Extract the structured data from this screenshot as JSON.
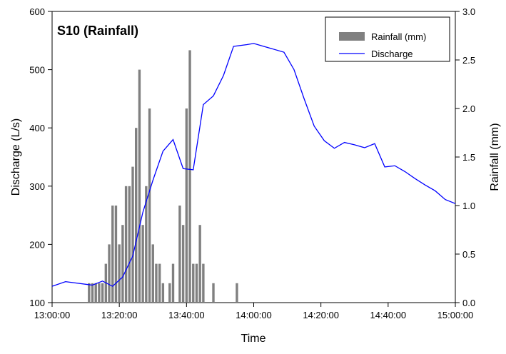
{
  "chart_data": {
    "type": "bar+line",
    "title": "S10 (Rainfall)",
    "xlabel": "Time",
    "ylabel_left": "Discharge (L/s)",
    "ylabel_right": "Rainfall (mm)",
    "x_ticks": [
      "13:00:00",
      "13:20:00",
      "13:40:00",
      "14:00:00",
      "14:20:00",
      "14:40:00",
      "15:00:00"
    ],
    "x_range_minutes": [
      0,
      120
    ],
    "left_axis": {
      "range": [
        100,
        600
      ],
      "ticks": [
        "100",
        "200",
        "300",
        "400",
        "500",
        "600"
      ]
    },
    "right_axis": {
      "range": [
        0,
        3.0
      ],
      "ticks": [
        "0.0",
        "0.5",
        "1.0",
        "1.5",
        "2.0",
        "2.5",
        "3.0"
      ]
    },
    "legend": {
      "position": "top-right",
      "entries": [
        "Rainfall (mm)",
        "Discharge"
      ]
    },
    "colors": {
      "rainfall": "#808080",
      "discharge": "#0000ff"
    },
    "series": [
      {
        "name": "Rainfall (mm)",
        "type": "bar",
        "axis": "right",
        "x": [
          "13:11",
          "13:12",
          "13:13",
          "13:14",
          "13:15",
          "13:16",
          "13:17",
          "13:18",
          "13:19",
          "13:20",
          "13:21",
          "13:22",
          "13:23",
          "13:24",
          "13:25",
          "13:26",
          "13:27",
          "13:28",
          "13:29",
          "13:30",
          "13:31",
          "13:32",
          "13:33",
          "13:35",
          "13:36",
          "13:38",
          "13:39",
          "13:40",
          "13:41",
          "13:42",
          "13:43",
          "13:44",
          "13:45",
          "13:48",
          "13:55"
        ],
        "values": [
          0.2,
          0.2,
          0.2,
          0.2,
          0.2,
          0.4,
          0.6,
          1.0,
          1.0,
          0.6,
          0.8,
          1.2,
          1.2,
          1.4,
          1.8,
          2.4,
          0.8,
          1.2,
          2.0,
          0.6,
          0.4,
          0.4,
          0.2,
          0.2,
          0.4,
          1.0,
          0.8,
          2.0,
          2.6,
          0.4,
          0.4,
          0.8,
          0.4,
          0.2,
          0.2
        ]
      },
      {
        "name": "Discharge",
        "type": "line",
        "axis": "left",
        "x": [
          "13:00",
          "13:04",
          "13:12",
          "13:15",
          "13:18",
          "13:21",
          "13:24",
          "13:27",
          "13:30",
          "13:33",
          "13:36",
          "13:39",
          "13:42",
          "13:45",
          "13:48",
          "13:51",
          "13:54",
          "13:58",
          "14:00",
          "14:03",
          "14:09",
          "14:12",
          "14:15",
          "14:18",
          "14:21",
          "14:24",
          "14:27",
          "14:30",
          "14:33",
          "14:36",
          "14:39",
          "14:42",
          "14:45",
          "14:48",
          "14:51",
          "14:54",
          "14:57",
          "15:00"
        ],
        "values": [
          128,
          136,
          130,
          137,
          128,
          144,
          180,
          255,
          310,
          360,
          380,
          330,
          328,
          440,
          455,
          490,
          540,
          543,
          545,
          540,
          530,
          500,
          450,
          403,
          378,
          365,
          375,
          371,
          366,
          373,
          333,
          335,
          325,
          313,
          302,
          292,
          277,
          270
        ]
      }
    ]
  }
}
